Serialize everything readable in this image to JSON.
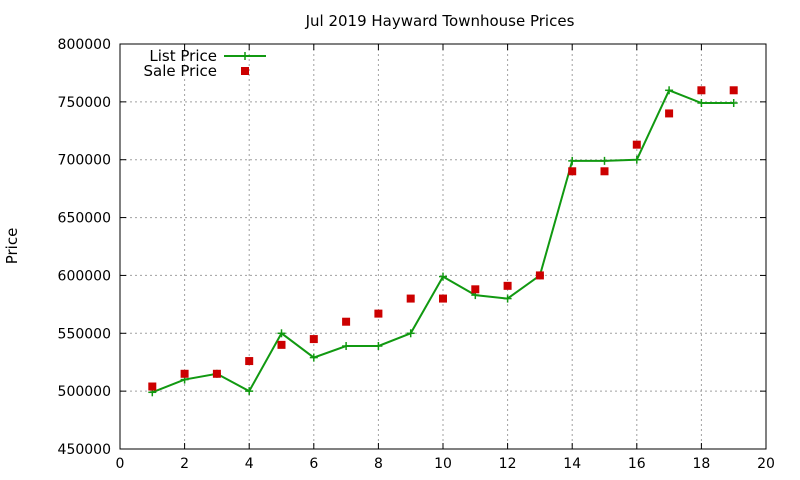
{
  "chart_data": {
    "type": "line",
    "title": "Jul 2019 Hayward Townhouse Prices",
    "xlabel": "",
    "ylabel": "Price",
    "xlim": [
      0,
      20
    ],
    "ylim": [
      450000,
      800000
    ],
    "xticks": [
      0,
      2,
      4,
      6,
      8,
      10,
      12,
      14,
      16,
      18,
      20
    ],
    "yticks": [
      450000,
      500000,
      550000,
      600000,
      650000,
      700000,
      750000,
      800000
    ],
    "grid": true,
    "legend_position": "top-left",
    "series": [
      {
        "name": "List Price",
        "style": "line-with-plus-markers",
        "color": "#119911",
        "x": [
          1,
          2,
          3,
          4,
          5,
          6,
          7,
          8,
          9,
          10,
          11,
          12,
          13,
          14,
          15,
          16,
          17,
          18,
          19
        ],
        "y": [
          499000,
          510000,
          515000,
          500000,
          550000,
          529000,
          539000,
          539000,
          550000,
          599000,
          583000,
          580000,
          600000,
          699000,
          699000,
          700000,
          760000,
          749000,
          749000
        ]
      },
      {
        "name": "Sale Price",
        "style": "square-markers",
        "color": "#cc0000",
        "x": [
          1,
          2,
          3,
          4,
          5,
          6,
          7,
          8,
          9,
          10,
          11,
          12,
          13,
          14,
          15,
          16,
          17,
          18,
          19
        ],
        "y": [
          504000,
          515000,
          515000,
          526000,
          540000,
          545000,
          560000,
          567000,
          580000,
          580000,
          588000,
          591000,
          600000,
          690000,
          690000,
          713000,
          740000,
          760000,
          760000
        ]
      }
    ]
  }
}
